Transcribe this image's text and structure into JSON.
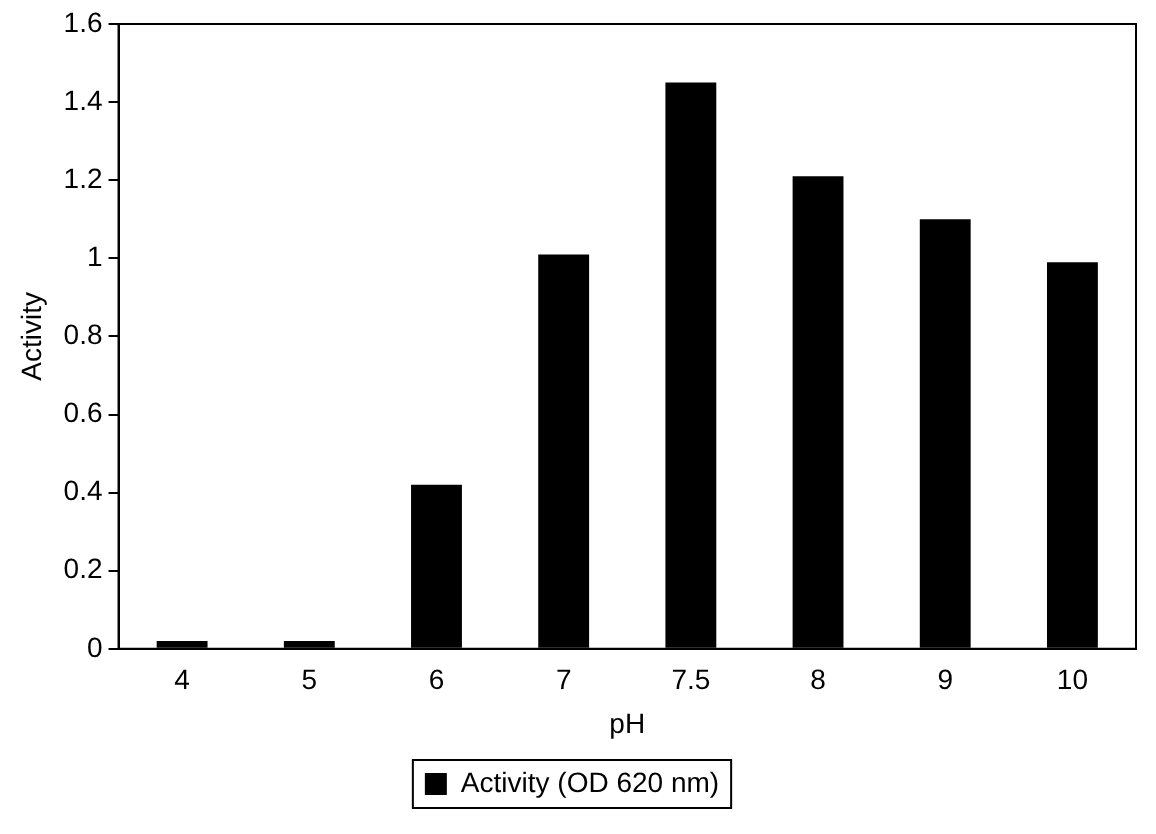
{
  "chart_data": {
    "type": "bar",
    "xlabel": "pH",
    "ylabel": "Activity",
    "categories": [
      "4",
      "5",
      "6",
      "7",
      "7.5",
      "8",
      "9",
      "10"
    ],
    "series": [
      {
        "name": "Activity (OD 620 nm)",
        "color": "#000000",
        "values": [
          0.02,
          0.02,
          0.42,
          1.01,
          1.45,
          1.21,
          1.1,
          0.99
        ]
      }
    ],
    "ylim": [
      0,
      1.6
    ],
    "yticks": [
      0,
      0.2,
      0.4,
      0.6,
      0.8,
      1,
      1.2,
      1.4,
      1.6
    ],
    "grid": false,
    "legend": "bottom"
  }
}
